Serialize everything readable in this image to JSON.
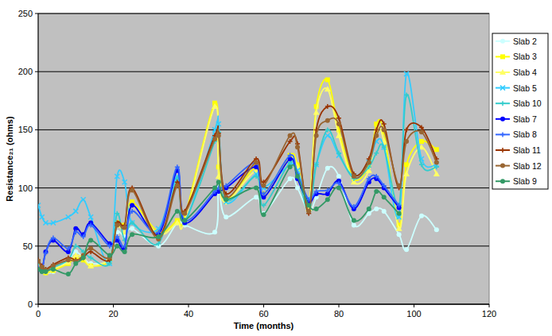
{
  "chart_data": {
    "type": "line",
    "x_label": "Time (months)",
    "y_label": "Resistance₂₁ (ohms)",
    "x": [
      0,
      1,
      2,
      4,
      8,
      10,
      12,
      14,
      19,
      21,
      23,
      25,
      32,
      37,
      39,
      47,
      48,
      50,
      58,
      60,
      67,
      69,
      72,
      74,
      77,
      80,
      84,
      88,
      90,
      92,
      96,
      98,
      102,
      106
    ],
    "xlim": [
      0,
      120
    ],
    "xticks": [
      0,
      20,
      40,
      60,
      80,
      100,
      120
    ],
    "ylim": [
      0,
      250
    ],
    "yticks": [
      0,
      50,
      100,
      150,
      200,
      250
    ],
    "grid": true,
    "legend": "right",
    "series": [
      {
        "name": "Slab 2",
        "color": "#ccffff",
        "marker": "circle",
        "values": [
          36,
          30,
          27,
          28,
          38,
          45,
          40,
          35,
          38,
          62,
          58,
          65,
          50,
          70,
          68,
          62,
          100,
          75,
          92,
          78,
          108,
          100,
          80,
          92,
          117,
          110,
          68,
          78,
          82,
          80,
          60,
          47,
          76,
          64
        ]
      },
      {
        "name": "Slab 3",
        "color": "#ffff00",
        "marker": "square",
        "values": [
          35,
          30,
          27,
          29,
          35,
          40,
          38,
          33,
          38,
          70,
          68,
          88,
          62,
          72,
          75,
          173,
          118,
          90,
          118,
          95,
          128,
          120,
          85,
          170,
          193,
          150,
          108,
          120,
          155,
          148,
          68,
          120,
          140,
          133
        ]
      },
      {
        "name": "Slab 4",
        "color": "#ffff66",
        "marker": "triangle",
        "values": [
          34,
          30,
          28,
          30,
          36,
          42,
          40,
          33,
          40,
          68,
          62,
          85,
          60,
          70,
          72,
          170,
          110,
          88,
          115,
          93,
          125,
          118,
          82,
          165,
          185,
          145,
          105,
          115,
          150,
          140,
          65,
          112,
          135,
          112
        ]
      },
      {
        "name": "Slab 5",
        "color": "#33ccff",
        "marker": "x",
        "values": [
          85,
          75,
          70,
          70,
          75,
          80,
          90,
          75,
          35,
          110,
          105,
          70,
          65,
          110,
          70,
          150,
          155,
          88,
          112,
          100,
          120,
          115,
          90,
          120,
          145,
          128,
          110,
          122,
          140,
          135,
          75,
          198,
          125,
          120
        ]
      },
      {
        "name": "Slab 10",
        "color": "#33cccc",
        "marker": "plus",
        "values": [
          36,
          32,
          30,
          32,
          38,
          50,
          45,
          40,
          35,
          78,
          55,
          70,
          52,
          108,
          72,
          140,
          148,
          90,
          110,
          85,
          122,
          112,
          80,
          120,
          150,
          130,
          108,
          118,
          130,
          135,
          85,
          180,
          120,
          118
        ]
      },
      {
        "name": "Slab 7",
        "color": "#0000ff",
        "marker": "circle",
        "values": [
          30,
          29,
          45,
          55,
          45,
          65,
          60,
          70,
          52,
          55,
          48,
          85,
          60,
          115,
          70,
          95,
          97,
          100,
          118,
          92,
          125,
          108,
          88,
          95,
          95,
          106,
          82,
          105,
          108,
          100,
          83,
          null,
          null,
          null
        ]
      },
      {
        "name": "Slab 8",
        "color": "#3366ff",
        "marker": "plus",
        "values": [
          32,
          30,
          44,
          57,
          48,
          62,
          58,
          68,
          50,
          58,
          50,
          80,
          62,
          118,
          72,
          97,
          100,
          102,
          122,
          95,
          128,
          112,
          90,
          97,
          98,
          104,
          84,
          108,
          110,
          102,
          85,
          null,
          null,
          null
        ]
      },
      {
        "name": "Slab 11",
        "color": "#993300",
        "marker": "plus",
        "values": [
          38,
          33,
          30,
          34,
          40,
          38,
          40,
          45,
          38,
          70,
          68,
          100,
          58,
          105,
          80,
          145,
          147,
          95,
          125,
          105,
          140,
          138,
          78,
          150,
          170,
          160,
          112,
          125,
          150,
          155,
          100,
          150,
          152,
          125
        ]
      },
      {
        "name": "Slab 12",
        "color": "#996633",
        "marker": "circle",
        "values": [
          37,
          32,
          29,
          33,
          38,
          37,
          42,
          48,
          40,
          68,
          66,
          98,
          56,
          102,
          78,
          142,
          145,
          92,
          122,
          102,
          145,
          135,
          80,
          145,
          158,
          155,
          110,
          122,
          145,
          150,
          102,
          140,
          148,
          122
        ]
      },
      {
        "name": "Slab 9",
        "color": "#339966",
        "marker": "circle",
        "values": [
          30,
          28,
          28,
          30,
          26,
          35,
          40,
          55,
          42,
          50,
          45,
          60,
          58,
          80,
          72,
          100,
          105,
          90,
          100,
          77,
          118,
          110,
          85,
          82,
          90,
          100,
          72,
          82,
          97,
          92,
          78,
          null,
          null,
          null
        ]
      }
    ]
  }
}
